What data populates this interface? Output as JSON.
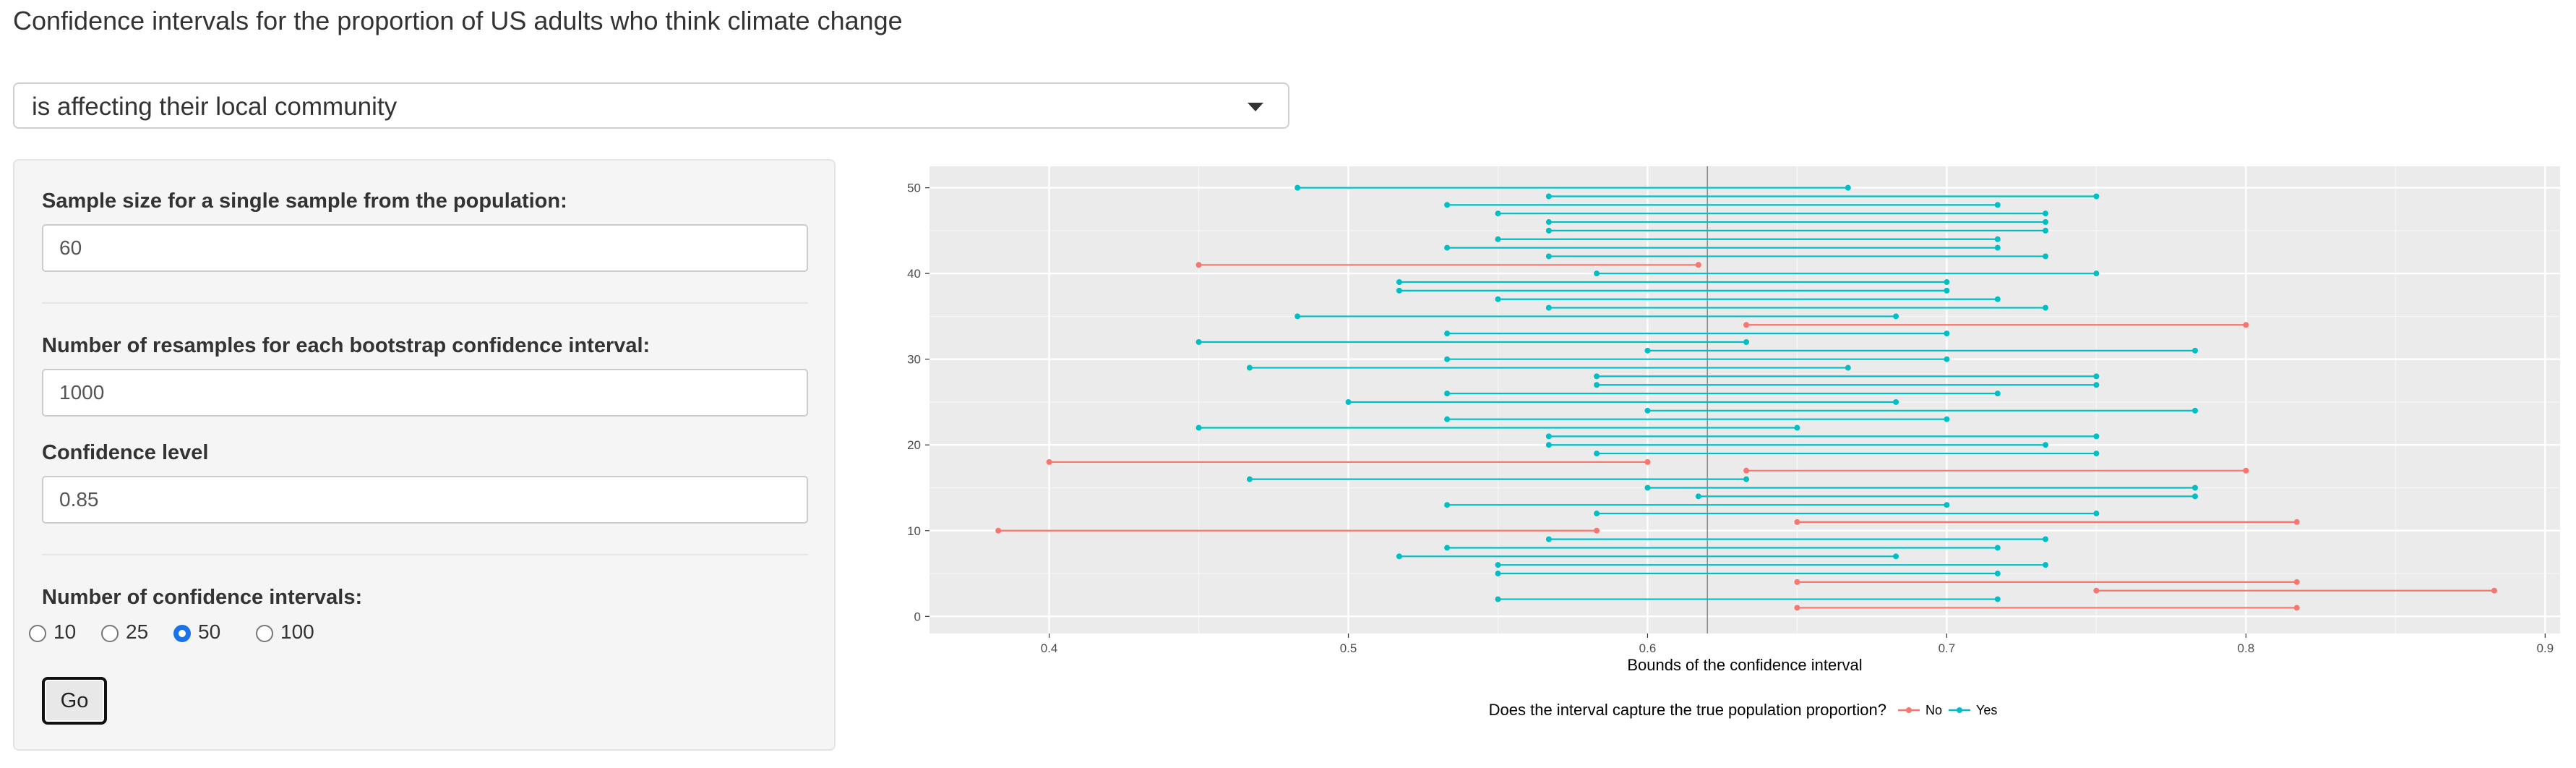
{
  "title": "Confidence intervals for the proportion of US adults who think climate change",
  "question_select": {
    "selected": "is affecting their local community"
  },
  "sidebar": {
    "sample_size": {
      "label": "Sample size for a single sample from the population:",
      "value": "60"
    },
    "resamples": {
      "label": "Number of resamples for each bootstrap confidence interval:",
      "value": "1000"
    },
    "confidence_level": {
      "label": "Confidence level",
      "value": "0.85"
    },
    "num_intervals": {
      "label": "Number of confidence intervals:",
      "options": [
        "10",
        "25",
        "50",
        "100"
      ],
      "selected": "50"
    },
    "go_label": "Go"
  },
  "chart_data": {
    "type": "interval",
    "xlabel": "Bounds of the confidence interval",
    "ylabel": "",
    "xlim": [
      0.36,
      0.905
    ],
    "ylim": [
      -2,
      52.5
    ],
    "x_ticks": [
      "0.4",
      "0.5",
      "0.6",
      "0.7",
      "0.8",
      "0.9"
    ],
    "y_ticks": [
      "0",
      "10",
      "20",
      "30",
      "40",
      "50"
    ],
    "reference_line": 0.62,
    "legend": {
      "title": "Does the interval capture the true population proportion?",
      "position": "bottom",
      "entries": [
        {
          "label": "No",
          "color": "#F8766D"
        },
        {
          "label": "Yes",
          "color": "#00BFC4"
        }
      ]
    },
    "grid": true,
    "intervals": [
      {
        "id": 1,
        "lower": 0.65,
        "upper": 0.817,
        "captured": "No"
      },
      {
        "id": 2,
        "lower": 0.55,
        "upper": 0.717,
        "captured": "Yes"
      },
      {
        "id": 3,
        "lower": 0.75,
        "upper": 0.883,
        "captured": "No"
      },
      {
        "id": 4,
        "lower": 0.65,
        "upper": 0.817,
        "captured": "No"
      },
      {
        "id": 5,
        "lower": 0.55,
        "upper": 0.717,
        "captured": "Yes"
      },
      {
        "id": 6,
        "lower": 0.55,
        "upper": 0.733,
        "captured": "Yes"
      },
      {
        "id": 7,
        "lower": 0.517,
        "upper": 0.683,
        "captured": "Yes"
      },
      {
        "id": 8,
        "lower": 0.533,
        "upper": 0.717,
        "captured": "Yes"
      },
      {
        "id": 9,
        "lower": 0.567,
        "upper": 0.733,
        "captured": "Yes"
      },
      {
        "id": 10,
        "lower": 0.383,
        "upper": 0.583,
        "captured": "No"
      },
      {
        "id": 11,
        "lower": 0.65,
        "upper": 0.817,
        "captured": "No"
      },
      {
        "id": 12,
        "lower": 0.583,
        "upper": 0.75,
        "captured": "Yes"
      },
      {
        "id": 13,
        "lower": 0.533,
        "upper": 0.7,
        "captured": "Yes"
      },
      {
        "id": 14,
        "lower": 0.617,
        "upper": 0.783,
        "captured": "Yes"
      },
      {
        "id": 15,
        "lower": 0.6,
        "upper": 0.783,
        "captured": "Yes"
      },
      {
        "id": 16,
        "lower": 0.467,
        "upper": 0.633,
        "captured": "Yes"
      },
      {
        "id": 17,
        "lower": 0.633,
        "upper": 0.8,
        "captured": "No"
      },
      {
        "id": 18,
        "lower": 0.4,
        "upper": 0.6,
        "captured": "No"
      },
      {
        "id": 19,
        "lower": 0.583,
        "upper": 0.75,
        "captured": "Yes"
      },
      {
        "id": 20,
        "lower": 0.567,
        "upper": 0.733,
        "captured": "Yes"
      },
      {
        "id": 21,
        "lower": 0.567,
        "upper": 0.75,
        "captured": "Yes"
      },
      {
        "id": 22,
        "lower": 0.45,
        "upper": 0.65,
        "captured": "Yes"
      },
      {
        "id": 23,
        "lower": 0.533,
        "upper": 0.7,
        "captured": "Yes"
      },
      {
        "id": 24,
        "lower": 0.6,
        "upper": 0.783,
        "captured": "Yes"
      },
      {
        "id": 25,
        "lower": 0.5,
        "upper": 0.683,
        "captured": "Yes"
      },
      {
        "id": 26,
        "lower": 0.533,
        "upper": 0.717,
        "captured": "Yes"
      },
      {
        "id": 27,
        "lower": 0.583,
        "upper": 0.75,
        "captured": "Yes"
      },
      {
        "id": 28,
        "lower": 0.583,
        "upper": 0.75,
        "captured": "Yes"
      },
      {
        "id": 29,
        "lower": 0.467,
        "upper": 0.667,
        "captured": "Yes"
      },
      {
        "id": 30,
        "lower": 0.533,
        "upper": 0.7,
        "captured": "Yes"
      },
      {
        "id": 31,
        "lower": 0.6,
        "upper": 0.783,
        "captured": "Yes"
      },
      {
        "id": 32,
        "lower": 0.45,
        "upper": 0.633,
        "captured": "Yes"
      },
      {
        "id": 33,
        "lower": 0.533,
        "upper": 0.7,
        "captured": "Yes"
      },
      {
        "id": 34,
        "lower": 0.633,
        "upper": 0.8,
        "captured": "No"
      },
      {
        "id": 35,
        "lower": 0.483,
        "upper": 0.683,
        "captured": "Yes"
      },
      {
        "id": 36,
        "lower": 0.567,
        "upper": 0.733,
        "captured": "Yes"
      },
      {
        "id": 37,
        "lower": 0.55,
        "upper": 0.717,
        "captured": "Yes"
      },
      {
        "id": 38,
        "lower": 0.517,
        "upper": 0.7,
        "captured": "Yes"
      },
      {
        "id": 39,
        "lower": 0.517,
        "upper": 0.7,
        "captured": "Yes"
      },
      {
        "id": 40,
        "lower": 0.583,
        "upper": 0.75,
        "captured": "Yes"
      },
      {
        "id": 41,
        "lower": 0.45,
        "upper": 0.617,
        "captured": "No"
      },
      {
        "id": 42,
        "lower": 0.567,
        "upper": 0.733,
        "captured": "Yes"
      },
      {
        "id": 43,
        "lower": 0.533,
        "upper": 0.717,
        "captured": "Yes"
      },
      {
        "id": 44,
        "lower": 0.55,
        "upper": 0.717,
        "captured": "Yes"
      },
      {
        "id": 45,
        "lower": 0.567,
        "upper": 0.733,
        "captured": "Yes"
      },
      {
        "id": 46,
        "lower": 0.567,
        "upper": 0.733,
        "captured": "Yes"
      },
      {
        "id": 47,
        "lower": 0.55,
        "upper": 0.733,
        "captured": "Yes"
      },
      {
        "id": 48,
        "lower": 0.533,
        "upper": 0.717,
        "captured": "Yes"
      },
      {
        "id": 49,
        "lower": 0.567,
        "upper": 0.75,
        "captured": "Yes"
      },
      {
        "id": 50,
        "lower": 0.483,
        "upper": 0.667,
        "captured": "Yes"
      }
    ]
  }
}
